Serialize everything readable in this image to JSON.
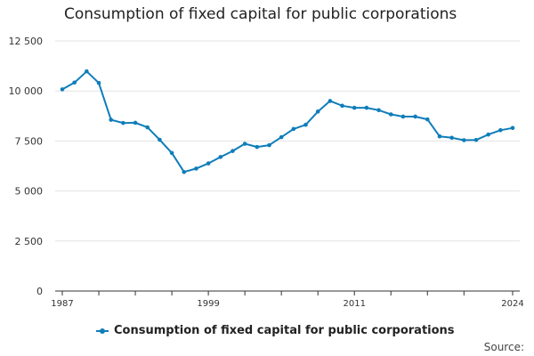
{
  "chart_data": {
    "type": "line",
    "title": "Consumption of fixed capital for public corporations",
    "xlabel": "",
    "ylabel": "",
    "ylim": [
      0,
      12500
    ],
    "yticks": [
      0,
      2500,
      5000,
      7500,
      10000,
      12500
    ],
    "ytick_labels": [
      "0",
      "2 500",
      "5 000",
      "7 500",
      "10 000",
      "12 500"
    ],
    "xlim": [
      1987,
      2024
    ],
    "xtick_labels": [
      "1987",
      "1999",
      "2011",
      "2024"
    ],
    "grid": true,
    "legend_position": "bottom",
    "series": [
      {
        "name": "Consumption of fixed capital for public corporations",
        "color": "#0f7dba",
        "x": [
          1987,
          1988,
          1989,
          1990,
          1991,
          1992,
          1993,
          1994,
          1995,
          1996,
          1997,
          1998,
          1999,
          2000,
          2001,
          2002,
          2003,
          2004,
          2005,
          2006,
          2007,
          2008,
          2009,
          2010,
          2011,
          2012,
          2013,
          2014,
          2015,
          2016,
          2017,
          2018,
          2019,
          2020,
          2021,
          2022,
          2023,
          2024
        ],
        "values": [
          10080,
          10420,
          10980,
          10400,
          8560,
          8400,
          8410,
          8180,
          7560,
          6900,
          5950,
          6120,
          6380,
          6700,
          7000,
          7360,
          7200,
          7290,
          7690,
          8100,
          8310,
          8970,
          9500,
          9260,
          9160,
          9160,
          9040,
          8830,
          8720,
          8720,
          8580,
          7730,
          7660,
          7540,
          7550,
          7820,
          8040,
          8150
        ]
      }
    ]
  },
  "legend": {
    "label": "Consumption of fixed capital for public corporations"
  },
  "source": {
    "label": "Source:"
  }
}
